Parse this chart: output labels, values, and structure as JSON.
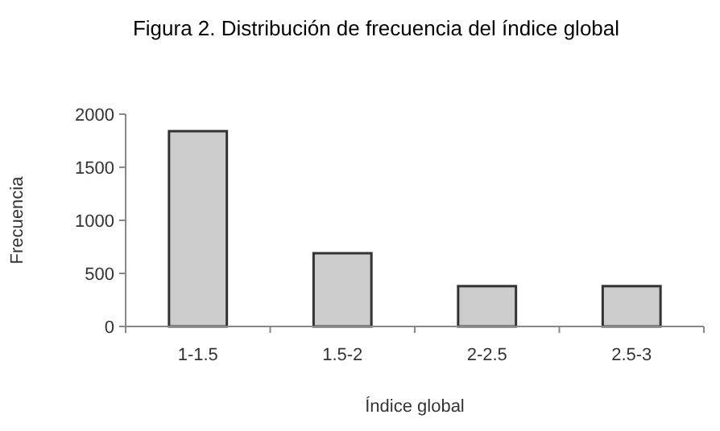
{
  "chart_data": {
    "type": "bar",
    "title": "Figura 2. Distribución de frecuencia del índice global",
    "xlabel": "Índice global",
    "ylabel": "Frecuencia",
    "categories": [
      "1-1.5",
      "1.5-2",
      "2-2.5",
      "2.5-3"
    ],
    "values": [
      1840,
      690,
      380,
      380
    ],
    "color": "#cccccc",
    "ylim": [
      0,
      2000
    ],
    "yticks": [
      0,
      500,
      1000,
      1500,
      2000
    ],
    "grid": false
  }
}
